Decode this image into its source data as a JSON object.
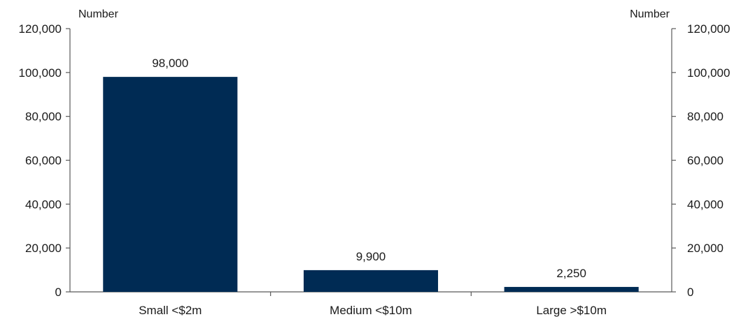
{
  "chart_data": {
    "type": "bar",
    "title": "",
    "xlabel": "",
    "ylabel_left": "Number",
    "ylabel_right": "Number",
    "categories": [
      "Small <$2m",
      "Medium <$10m",
      "Large >$10m"
    ],
    "values": [
      98000,
      9900,
      2250
    ],
    "value_labels": [
      "98,000",
      "9,900",
      "2,250"
    ],
    "ylim": [
      0,
      120000
    ],
    "yticks": [
      0,
      20000,
      40000,
      60000,
      80000,
      100000,
      120000
    ],
    "ytick_labels": [
      "0",
      "20,000",
      "40,000",
      "60,000",
      "80,000",
      "100,000",
      "120,000"
    ],
    "grid": false,
    "legend": "none",
    "colors": {
      "bar": "#002b54",
      "axis": "#595959",
      "text": "#1a1a1a"
    }
  }
}
